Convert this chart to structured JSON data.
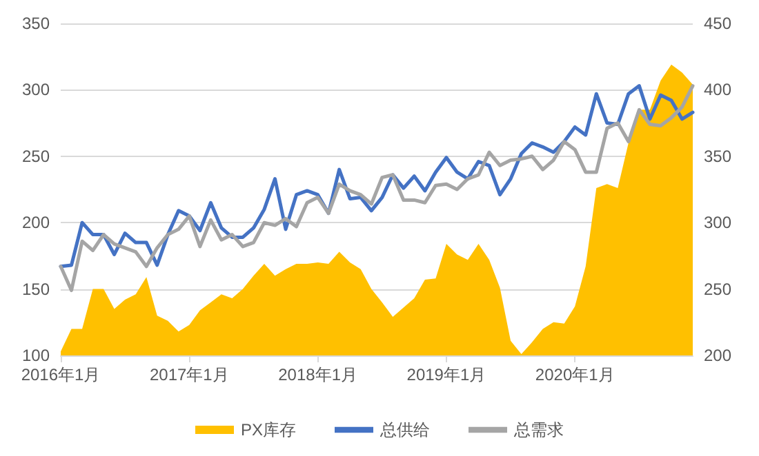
{
  "chart_data": {
    "type": "line",
    "categories": [
      "2016年1月",
      null,
      null,
      null,
      null,
      null,
      null,
      null,
      null,
      null,
      null,
      null,
      "2017年1月",
      null,
      null,
      null,
      null,
      null,
      null,
      null,
      null,
      null,
      null,
      null,
      "2018年1月",
      null,
      null,
      null,
      null,
      null,
      null,
      null,
      null,
      null,
      null,
      null,
      "2019年1月",
      null,
      null,
      null,
      null,
      null,
      null,
      null,
      null,
      null,
      null,
      null,
      "2020年1月",
      null,
      null,
      null,
      null,
      null,
      null,
      null,
      null,
      null,
      null,
      null
    ],
    "series": [
      {
        "name": "PX库存",
        "type": "area",
        "color": "#ffc000",
        "values": [
          103,
          120,
          120,
          150,
          150,
          135,
          142,
          146,
          159,
          130,
          126,
          118,
          123,
          134,
          140,
          146,
          143,
          150,
          160,
          169,
          160,
          165,
          169,
          169,
          170,
          169,
          178,
          170,
          165,
          150,
          140,
          129,
          136,
          143,
          157,
          158,
          184,
          176,
          172,
          184,
          172,
          151,
          111,
          101,
          110,
          120,
          125,
          124,
          137,
          167,
          226,
          229,
          226,
          260,
          285,
          285,
          307,
          319,
          313,
          304
        ]
      },
      {
        "name": "总供给",
        "axis": "y2",
        "color": "#4472c4",
        "values": [
          267,
          268,
          300,
          291,
          291,
          276,
          292,
          285,
          285,
          268,
          291,
          309,
          305,
          294,
          315,
          296,
          289,
          289,
          296,
          310,
          333,
          295,
          321,
          324,
          321,
          307,
          340,
          318,
          319,
          309,
          319,
          336,
          326,
          335,
          324,
          338,
          349,
          338,
          333,
          346,
          343,
          321,
          333,
          352,
          360,
          357,
          353,
          361,
          372,
          366,
          397,
          375,
          374,
          397,
          403,
          378,
          396,
          392,
          378,
          383
        ]
      },
      {
        "name": "总需求",
        "axis": "y2",
        "color": "#a5a5a5",
        "values": [
          267,
          249,
          286,
          279,
          291,
          284,
          281,
          278,
          267,
          281,
          291,
          295,
          305,
          282,
          302,
          287,
          291,
          282,
          285,
          300,
          298,
          303,
          297,
          315,
          319,
          307,
          329,
          324,
          321,
          314,
          334,
          336,
          317,
          317,
          315,
          328,
          329,
          325,
          333,
          336,
          353,
          343,
          347,
          348,
          350,
          340,
          347,
          361,
          355,
          338,
          338,
          371,
          375,
          361,
          385,
          374,
          373,
          379,
          387,
          403
        ]
      }
    ],
    "ylim": [
      100,
      350
    ],
    "yticks": [
      100,
      150,
      200,
      250,
      300,
      350
    ],
    "y2lim": [
      200,
      450
    ],
    "y2ticks": [
      200,
      250,
      300,
      350,
      400,
      450
    ],
    "grid": "y",
    "legend": "bottom",
    "marker": "none",
    "line_style": "solid"
  }
}
